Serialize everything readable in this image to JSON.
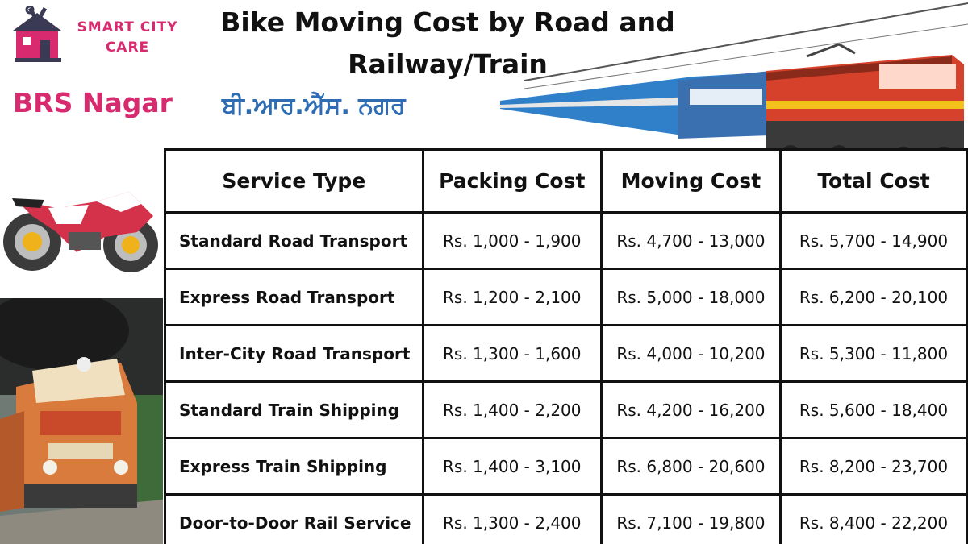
{
  "brand": {
    "line1": "SMART CITY",
    "line2": "CARE",
    "color": "#d72a6f"
  },
  "title": "Bike Moving Cost by Road and Railway/Train",
  "location": {
    "english": "BRS Nagar",
    "punjabi": "ਬੀ.ਆਰ.ਐੱਸ. ਨਗਰ"
  },
  "table": {
    "headers": [
      "Service Type",
      "Packing Cost",
      "Moving Cost",
      "Total Cost"
    ],
    "rows": [
      {
        "service": "Standard Road Transport",
        "packing": "Rs. 1,000 - 1,900",
        "moving": "Rs. 4,700 - 13,000",
        "total": "Rs. 5,700 - 14,900"
      },
      {
        "service": "Express Road Transport",
        "packing": "Rs. 1,200 - 2,100",
        "moving": "Rs. 5,000 - 18,000",
        "total": "Rs. 6,200 - 20,100"
      },
      {
        "service": "Inter-City Road Transport",
        "packing": "Rs. 1,300 - 1,600",
        "moving": "Rs. 4,000 - 10,200",
        "total": "Rs. 5,300 - 11,800"
      },
      {
        "service": "Standard Train Shipping",
        "packing": "Rs. 1,400 - 2,200",
        "moving": "Rs. 4,200 - 16,200",
        "total": "Rs. 5,600 - 18,400"
      },
      {
        "service": "Express Train Shipping",
        "packing": "Rs. 1,400 - 3,100",
        "moving": "Rs. 6,800 - 20,600",
        "total": "Rs. 8,200 - 23,700"
      },
      {
        "service": "Door-to-Door Rail Service",
        "packing": "Rs. 1,300 - 2,400",
        "moving": "Rs. 7,100 - 19,800",
        "total": "Rs. 8,400 - 22,200"
      }
    ]
  },
  "images": [
    "house-tools-logo-icon",
    "electric-train-icon",
    "sport-bike-icon",
    "diesel-locomotive-photo"
  ]
}
